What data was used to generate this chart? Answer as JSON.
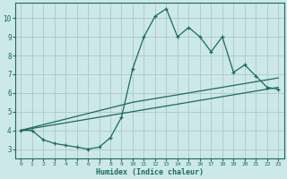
{
  "xlabel": "Humidex (Indice chaleur)",
  "bg_color": "#cce8e8",
  "grid_color": "#b0cccc",
  "line_color": "#1a6b5a",
  "xlim": [
    -0.5,
    23.5
  ],
  "ylim": [
    2.5,
    10.8
  ],
  "xticks": [
    0,
    1,
    2,
    3,
    4,
    5,
    6,
    7,
    8,
    9,
    10,
    11,
    12,
    13,
    14,
    15,
    16,
    17,
    18,
    19,
    20,
    21,
    22,
    23
  ],
  "yticks": [
    3,
    4,
    5,
    6,
    7,
    8,
    9,
    10
  ],
  "series1_x": [
    0,
    1,
    2,
    3,
    4,
    5,
    6,
    7,
    8,
    9,
    10,
    11,
    12,
    13,
    14,
    15,
    16,
    17,
    18,
    19,
    20,
    21,
    22,
    23
  ],
  "series1_y": [
    4.0,
    4.0,
    3.5,
    3.3,
    3.2,
    3.1,
    3.0,
    3.1,
    3.6,
    4.7,
    7.3,
    9.0,
    10.1,
    10.5,
    9.0,
    9.5,
    9.0,
    8.2,
    9.0,
    7.1,
    7.5,
    6.9,
    6.3,
    6.2
  ],
  "line2_x": [
    0,
    23
  ],
  "line2_y": [
    4.0,
    6.3
  ],
  "line3_x": [
    0,
    10,
    23
  ],
  "line3_y": [
    4.0,
    5.5,
    6.8
  ]
}
